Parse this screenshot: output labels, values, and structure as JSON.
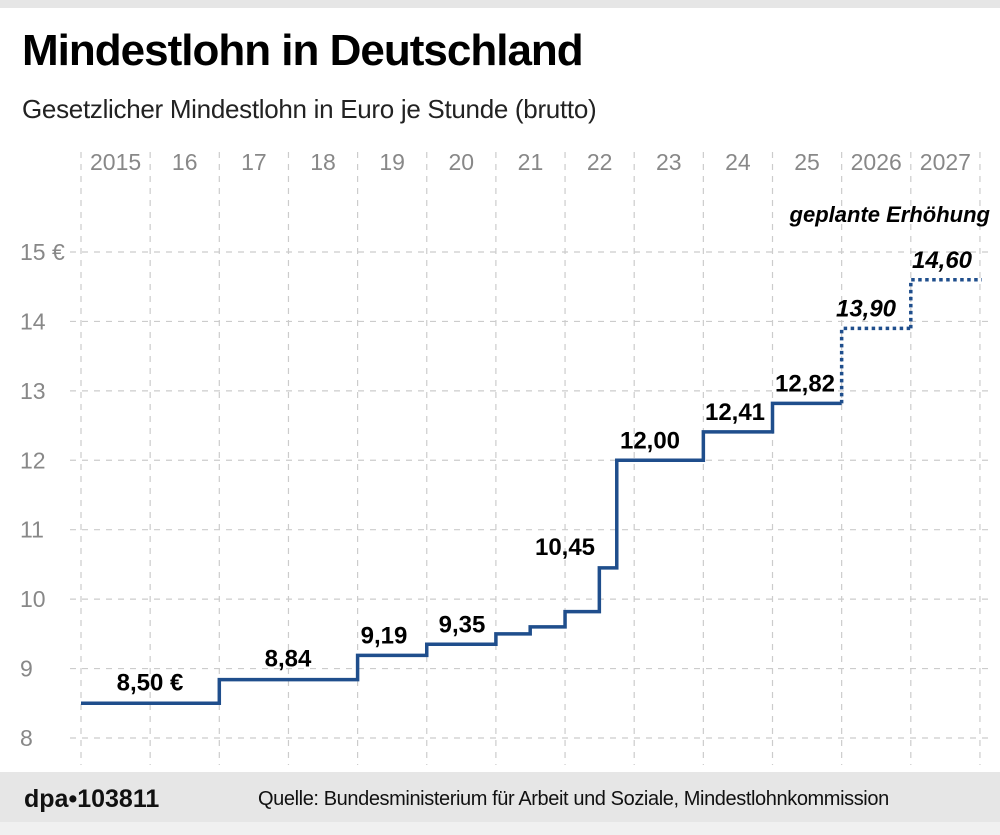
{
  "title": "Mindestlohn in Deutschland",
  "subtitle": "Gesetzlicher Mindestlohn in Euro je Stunde (brutto)",
  "footer": {
    "brand": "dpa•103811",
    "source": "Quelle: Bundesministerium für Arbeit und Soziale, Mindestlohnkommission"
  },
  "colors": {
    "line": "#1f4e8c",
    "grid": "#cccccc",
    "tick": "#888888",
    "footer_bg": "#e6e6e6"
  },
  "chart_data": {
    "type": "line",
    "step": true,
    "x_ticks": [
      "2015",
      "16",
      "17",
      "18",
      "19",
      "20",
      "21",
      "22",
      "23",
      "24",
      "25",
      "2026",
      "2027"
    ],
    "xlim": [
      "2015-01-01",
      "2027-12-31"
    ],
    "y_ticks": [
      "15 €",
      "14",
      "13",
      "12",
      "11",
      "10",
      "9",
      "8"
    ],
    "ylim": [
      8,
      15
    ],
    "grid": true,
    "annotation": "geplante Erhöhung",
    "series": [
      {
        "points": [
          {
            "from": "2015-01-01",
            "value": 8.5,
            "label": "8,50 €"
          },
          {
            "from": "2017-01-01",
            "value": 8.84,
            "label": "8,84"
          },
          {
            "from": "2019-01-01",
            "value": 9.19,
            "label": "9,19"
          },
          {
            "from": "2020-01-01",
            "value": 9.35,
            "label": "9,35"
          },
          {
            "from": "2021-01-01",
            "value": 9.5
          },
          {
            "from": "2021-07-01",
            "value": 9.6
          },
          {
            "from": "2022-01-01",
            "value": 9.82
          },
          {
            "from": "2022-07-01",
            "value": 10.45,
            "label": "10,45"
          },
          {
            "from": "2022-10-01",
            "value": 12.0,
            "label": "12,00"
          },
          {
            "from": "2024-01-01",
            "value": 12.41,
            "label": "12,41"
          },
          {
            "from": "2025-01-01",
            "value": 12.82,
            "label": "12,82"
          },
          {
            "from": "2026-01-01",
            "value": 13.9,
            "label": "13,90",
            "planned": true
          },
          {
            "from": "2027-01-01",
            "value": 14.6,
            "label": "14,60",
            "planned": true
          }
        ]
      }
    ]
  }
}
